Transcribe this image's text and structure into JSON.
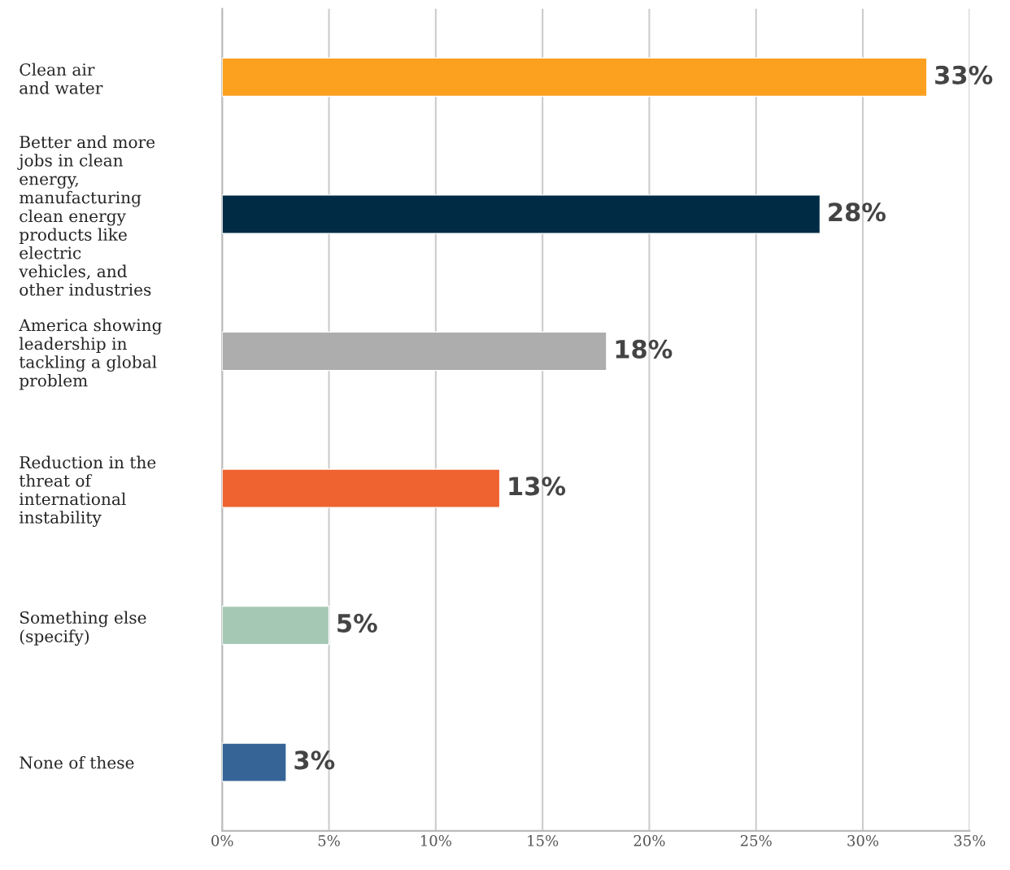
{
  "chart_data": {
    "type": "bar",
    "orientation": "horizontal",
    "categories": [
      "Clean air\nand water",
      "Better and more\njobs in clean\nenergy,\nmanufacturing\nclean energy\nproducts like\nelectric\nvehicles, and\nother industries",
      "America showing\nleadership in\ntackling a global\nproblem",
      "Reduction in the\nthreat of\ninternational\ninstability",
      "Something else\n(specify)",
      "None of these"
    ],
    "values": [
      33,
      28,
      18,
      13,
      5,
      3
    ],
    "colors": [
      "#fba01f",
      "#002b45",
      "#adadad",
      "#ee6330",
      "#a5c8b4",
      "#366497"
    ],
    "value_labels": [
      "33%",
      "28%",
      "18%",
      "13%",
      "5%",
      "3%"
    ],
    "xlim": [
      0,
      35
    ],
    "xticks": [
      {
        "value": 0,
        "label": "0%"
      },
      {
        "value": 5,
        "label": "5%"
      },
      {
        "value": 10,
        "label": "10%"
      },
      {
        "value": 15,
        "label": "15%"
      },
      {
        "value": 20,
        "label": "20%"
      },
      {
        "value": 25,
        "label": "25%"
      },
      {
        "value": 30,
        "label": "30%"
      },
      {
        "value": 35,
        "label": "35%"
      }
    ],
    "grid": "x"
  }
}
